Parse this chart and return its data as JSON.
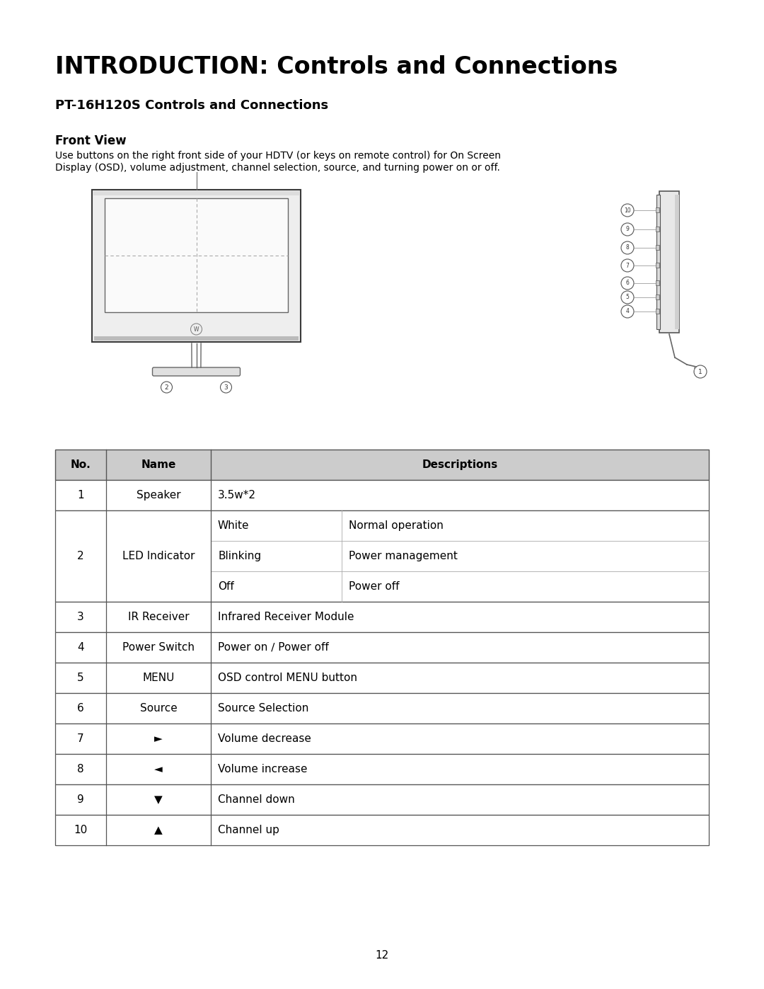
{
  "title": "INTRODUCTION: Controls and Connections",
  "subtitle": "PT-16H120S Controls and Connections",
  "section": "Front View",
  "body_line1": "Use buttons on the right front side of your HDTV (or keys on remote control) for On Screen",
  "body_line2": "Display (OSD), volume adjustment, channel selection, source, and turning power on or off.",
  "page_number": "12",
  "background_color": "#ffffff",
  "text_color": "#000000",
  "logical_rows": [
    {
      "no": "1",
      "name": "Speaker",
      "desc": [
        [
          "3.5w*2",
          ""
        ]
      ]
    },
    {
      "no": "2",
      "name": "LED Indicator",
      "desc": [
        [
          "White",
          "Normal operation"
        ],
        [
          "Blinking",
          "Power management"
        ],
        [
          "Off",
          "Power off"
        ]
      ]
    },
    {
      "no": "3",
      "name": "IR Receiver",
      "desc": [
        [
          "Infrared Receiver Module",
          ""
        ]
      ]
    },
    {
      "no": "4",
      "name": "Power Switch",
      "desc": [
        [
          "Power on ∕ Power off",
          ""
        ]
      ]
    },
    {
      "no": "5",
      "name": "MENU",
      "desc": [
        [
          "OSD control MENU button",
          ""
        ]
      ]
    },
    {
      "no": "6",
      "name": "Source",
      "desc": [
        [
          "Source Selection",
          ""
        ]
      ]
    },
    {
      "no": "7",
      "name": "►",
      "desc": [
        [
          "Volume decrease",
          ""
        ]
      ]
    },
    {
      "no": "8",
      "name": "◄",
      "desc": [
        [
          "Volume increase",
          ""
        ]
      ]
    },
    {
      "no": "9",
      "name": "▼",
      "desc": [
        [
          "Channel down",
          ""
        ]
      ]
    },
    {
      "no": "10",
      "name": "▲",
      "desc": [
        [
          "Channel up",
          ""
        ]
      ]
    }
  ]
}
